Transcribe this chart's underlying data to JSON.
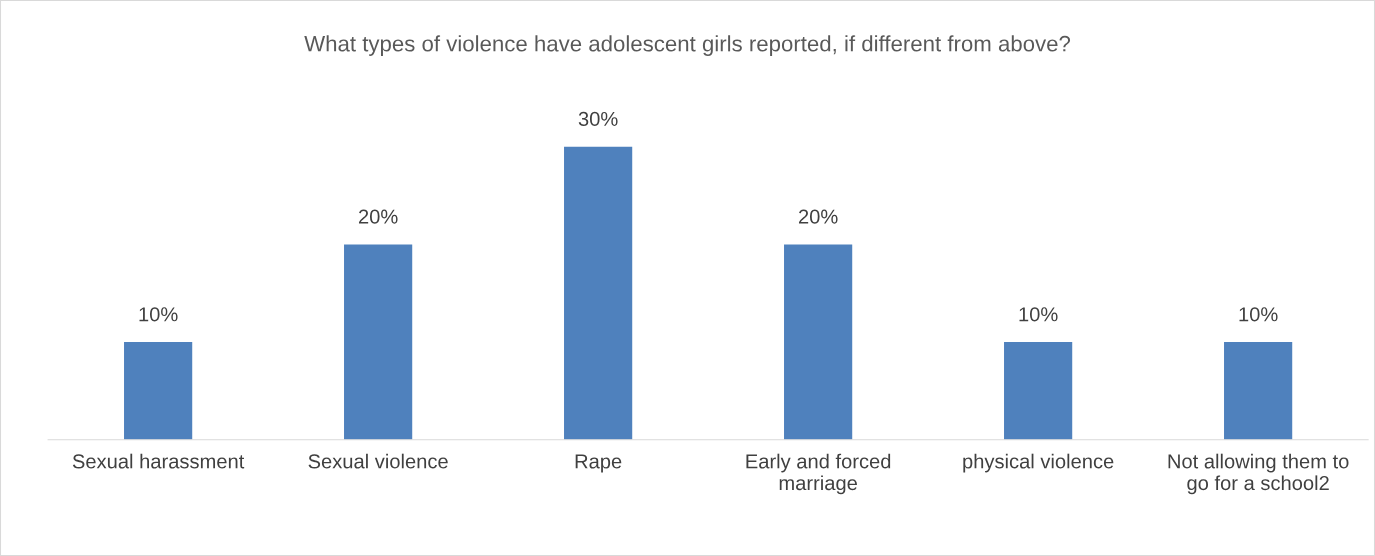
{
  "chart_data": {
    "type": "bar",
    "title": "What types of violence have adolescent girls reported, if different from above?",
    "categories": [
      "Sexual harassment",
      "Sexual violence",
      "Rape",
      "Early and forced\nmarriage",
      "physical violence",
      "Not allowing them to\ngo for a school2"
    ],
    "values": [
      10,
      20,
      30,
      20,
      10,
      10
    ],
    "value_labels": [
      "10%",
      "20%",
      "30%",
      "20%",
      "10%",
      "10%"
    ],
    "color": "#4f81bd",
    "grid": false,
    "legend": false
  }
}
